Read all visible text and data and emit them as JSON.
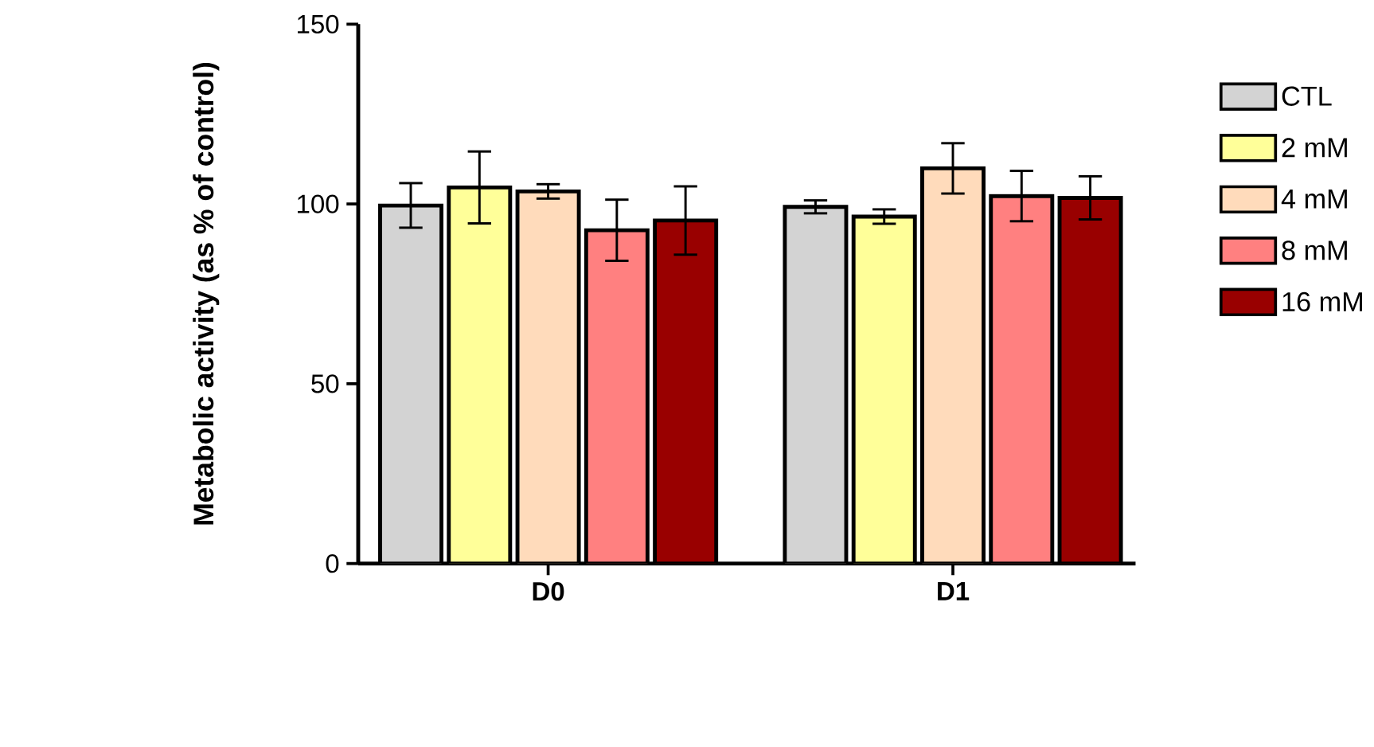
{
  "chart_data": {
    "type": "bar",
    "ylabel": "Metabolic activity (as % of control)",
    "categories": [
      "D0",
      "D1"
    ],
    "series": [
      {
        "name": "CTL",
        "color": "#d3d3d3",
        "values": [
          99.6,
          99.2
        ],
        "errors": [
          6.2,
          1.8
        ]
      },
      {
        "name": "2 mM",
        "color": "#ffff99",
        "values": [
          104.6,
          96.5
        ],
        "errors": [
          10,
          2
        ]
      },
      {
        "name": "4 mM",
        "color": "#ffdbbb",
        "values": [
          103.5,
          109.9
        ],
        "errors": [
          2,
          7
        ]
      },
      {
        "name": "8 mM",
        "color": "#ff8080",
        "values": [
          92.7,
          102.2
        ],
        "errors": [
          8.5,
          7
        ]
      },
      {
        "name": "16 mM",
        "color": "#990000",
        "values": [
          95.4,
          101.7
        ],
        "errors": [
          9.5,
          6
        ]
      }
    ],
    "ylim": [
      0,
      150
    ],
    "yticks": [
      0,
      50,
      100,
      150
    ],
    "legend": "right"
  }
}
